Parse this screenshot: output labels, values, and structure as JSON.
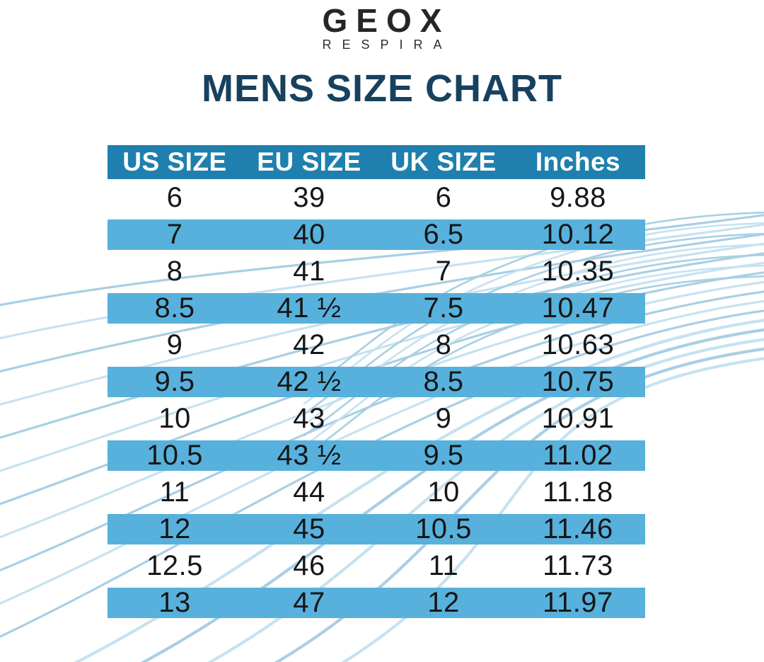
{
  "logo": {
    "brand": "GEOX",
    "subbrand": "RESPIRA"
  },
  "title": "MENS SIZE CHART",
  "colors": {
    "title_text": "#17415e",
    "header_bg": "#1f7fae",
    "header_text": "#ffffff",
    "stripe_bg": "#57b1dc",
    "body_text": "#161616",
    "wave": "#a9cfe4",
    "wave_light": "#c6e2f0"
  },
  "chart_data": {
    "type": "table",
    "title": "MENS SIZE CHART",
    "columns": [
      "US SIZE",
      "EU SIZE",
      "UK SIZE",
      "Inches"
    ],
    "rows": [
      [
        "6",
        "39",
        "6",
        "9.88"
      ],
      [
        "7",
        "40",
        "6.5",
        "10.12"
      ],
      [
        "8",
        "41",
        "7",
        "10.35"
      ],
      [
        "8.5",
        "41 ½",
        "7.5",
        "10.47"
      ],
      [
        "9",
        "42",
        "8",
        "10.63"
      ],
      [
        "9.5",
        "42 ½",
        "8.5",
        "10.75"
      ],
      [
        "10",
        "43",
        "9",
        "10.91"
      ],
      [
        "10.5",
        "43 ½",
        "9.5",
        "11.02"
      ],
      [
        "11",
        "44",
        "10",
        "11.18"
      ],
      [
        "12",
        "45",
        "10.5",
        "11.46"
      ],
      [
        "12.5",
        "46",
        "11",
        "11.73"
      ],
      [
        "13",
        "47",
        "12",
        "11.97"
      ]
    ],
    "row_striping": "alternate rows highlighted light blue",
    "legend_position": "none",
    "grid": false
  }
}
